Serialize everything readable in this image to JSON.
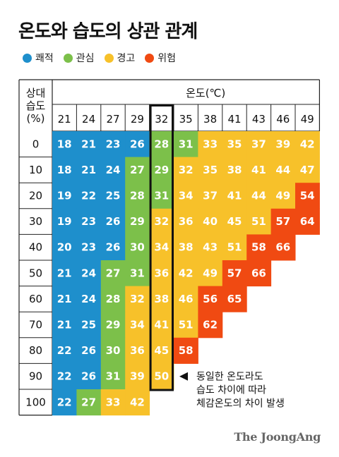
{
  "title": "온도와 습도의 상관 관계",
  "legend": [
    {
      "label": "쾌적",
      "color": "#1e8fcc"
    },
    {
      "label": "관심",
      "color": "#7cc04a"
    },
    {
      "label": "경고",
      "color": "#f7c12a"
    },
    {
      "label": "위험",
      "color": "#f04a12"
    }
  ],
  "source": "The JoongAng",
  "chart_data": {
    "type": "table",
    "title": "온도와 습도의 상관 관계",
    "row_header": "상대\n습도\n(%)",
    "col_header": "온도(℃)",
    "x": [
      21,
      24,
      27,
      29,
      32,
      35,
      38,
      41,
      43,
      46,
      49
    ],
    "y": [
      0,
      10,
      20,
      30,
      40,
      50,
      60,
      70,
      80,
      90,
      100
    ],
    "highlight_column": 32,
    "annotation": "동일한 온도라도\n습도 차이에 따라\n체감온도의 차이 발생",
    "rows": [
      [
        [
          18,
          "쾌적"
        ],
        [
          21,
          "쾌적"
        ],
        [
          23,
          "쾌적"
        ],
        [
          26,
          "쾌적"
        ],
        [
          28,
          "관심"
        ],
        [
          31,
          "관심"
        ],
        [
          33,
          "경고"
        ],
        [
          35,
          "경고"
        ],
        [
          37,
          "경고"
        ],
        [
          39,
          "경고"
        ],
        [
          42,
          "경고"
        ]
      ],
      [
        [
          18,
          "쾌적"
        ],
        [
          21,
          "쾌적"
        ],
        [
          24,
          "쾌적"
        ],
        [
          27,
          "관심"
        ],
        [
          29,
          "관심"
        ],
        [
          32,
          "경고"
        ],
        [
          35,
          "경고"
        ],
        [
          38,
          "경고"
        ],
        [
          41,
          "경고"
        ],
        [
          44,
          "경고"
        ],
        [
          47,
          "경고"
        ]
      ],
      [
        [
          19,
          "쾌적"
        ],
        [
          22,
          "쾌적"
        ],
        [
          25,
          "쾌적"
        ],
        [
          28,
          "관심"
        ],
        [
          31,
          "관심"
        ],
        [
          34,
          "경고"
        ],
        [
          37,
          "경고"
        ],
        [
          41,
          "경고"
        ],
        [
          44,
          "경고"
        ],
        [
          49,
          "경고"
        ],
        [
          54,
          "위험"
        ]
      ],
      [
        [
          19,
          "쾌적"
        ],
        [
          23,
          "쾌적"
        ],
        [
          26,
          "쾌적"
        ],
        [
          29,
          "관심"
        ],
        [
          32,
          "경고"
        ],
        [
          36,
          "경고"
        ],
        [
          40,
          "경고"
        ],
        [
          45,
          "경고"
        ],
        [
          51,
          "경고"
        ],
        [
          57,
          "위험"
        ],
        [
          64,
          "위험"
        ]
      ],
      [
        [
          20,
          "쾌적"
        ],
        [
          23,
          "쾌적"
        ],
        [
          26,
          "쾌적"
        ],
        [
          30,
          "관심"
        ],
        [
          34,
          "경고"
        ],
        [
          38,
          "경고"
        ],
        [
          43,
          "경고"
        ],
        [
          51,
          "경고"
        ],
        [
          58,
          "위험"
        ],
        [
          66,
          "위험"
        ]
      ],
      [
        [
          21,
          "쾌적"
        ],
        [
          24,
          "쾌적"
        ],
        [
          27,
          "관심"
        ],
        [
          31,
          "관심"
        ],
        [
          36,
          "경고"
        ],
        [
          42,
          "경고"
        ],
        [
          49,
          "경고"
        ],
        [
          57,
          "위험"
        ],
        [
          66,
          "위험"
        ]
      ],
      [
        [
          21,
          "쾌적"
        ],
        [
          24,
          "쾌적"
        ],
        [
          28,
          "관심"
        ],
        [
          32,
          "경고"
        ],
        [
          38,
          "경고"
        ],
        [
          46,
          "경고"
        ],
        [
          56,
          "위험"
        ],
        [
          65,
          "위험"
        ]
      ],
      [
        [
          21,
          "쾌적"
        ],
        [
          25,
          "쾌적"
        ],
        [
          29,
          "관심"
        ],
        [
          34,
          "경고"
        ],
        [
          41,
          "경고"
        ],
        [
          51,
          "경고"
        ],
        [
          62,
          "위험"
        ]
      ],
      [
        [
          22,
          "쾌적"
        ],
        [
          26,
          "쾌적"
        ],
        [
          30,
          "관심"
        ],
        [
          36,
          "경고"
        ],
        [
          45,
          "경고"
        ],
        [
          58,
          "위험"
        ]
      ],
      [
        [
          22,
          "쾌적"
        ],
        [
          26,
          "쾌적"
        ],
        [
          31,
          "관심"
        ],
        [
          39,
          "경고"
        ],
        [
          50,
          "경고"
        ]
      ],
      [
        [
          22,
          "쾌적"
        ],
        [
          27,
          "관심"
        ],
        [
          33,
          "경고"
        ],
        [
          42,
          "경고"
        ]
      ]
    ]
  }
}
